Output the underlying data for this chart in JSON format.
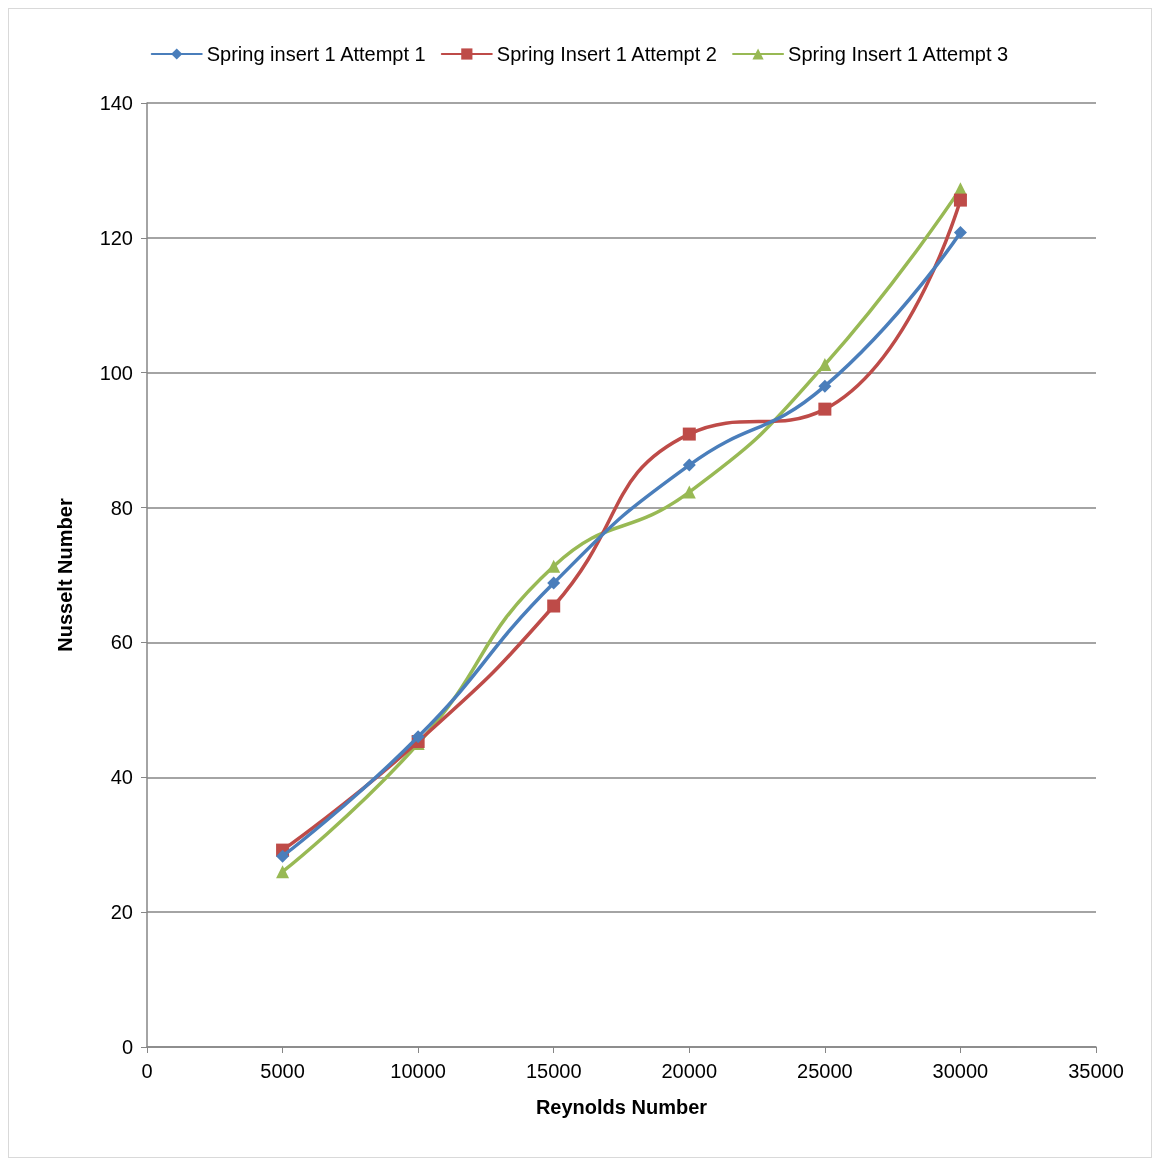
{
  "chart_data": {
    "type": "line",
    "xlabel": "Reynolds Number",
    "ylabel": "Nusselt Number",
    "x": [
      5000,
      10000,
      15000,
      20000,
      25000,
      30000
    ],
    "series": [
      {
        "name": "Spring insert 1 Attempt 1",
        "color": "#4a7ebb",
        "marker": "diamond",
        "values": [
          28.3,
          46.0,
          68.8,
          86.3,
          98.0,
          120.8
        ]
      },
      {
        "name": "Spring Insert 1 Attempt 2",
        "color": "#be4b48",
        "marker": "square",
        "values": [
          29.2,
          45.3,
          65.4,
          90.9,
          94.6,
          125.6
        ]
      },
      {
        "name": "Spring Insert 1 Attempt 3",
        "color": "#98b954",
        "marker": "triangle",
        "values": [
          26.0,
          45.0,
          71.3,
          82.3,
          101.2,
          127.3
        ]
      }
    ],
    "xlim": [
      0,
      35000
    ],
    "xticks": [
      0,
      5000,
      10000,
      15000,
      20000,
      25000,
      30000,
      35000
    ],
    "ylim": [
      0,
      140
    ],
    "yticks": [
      0,
      20,
      40,
      60,
      80,
      100,
      120,
      140
    ],
    "grid": "y",
    "legend": "top",
    "line_style": "solid"
  }
}
